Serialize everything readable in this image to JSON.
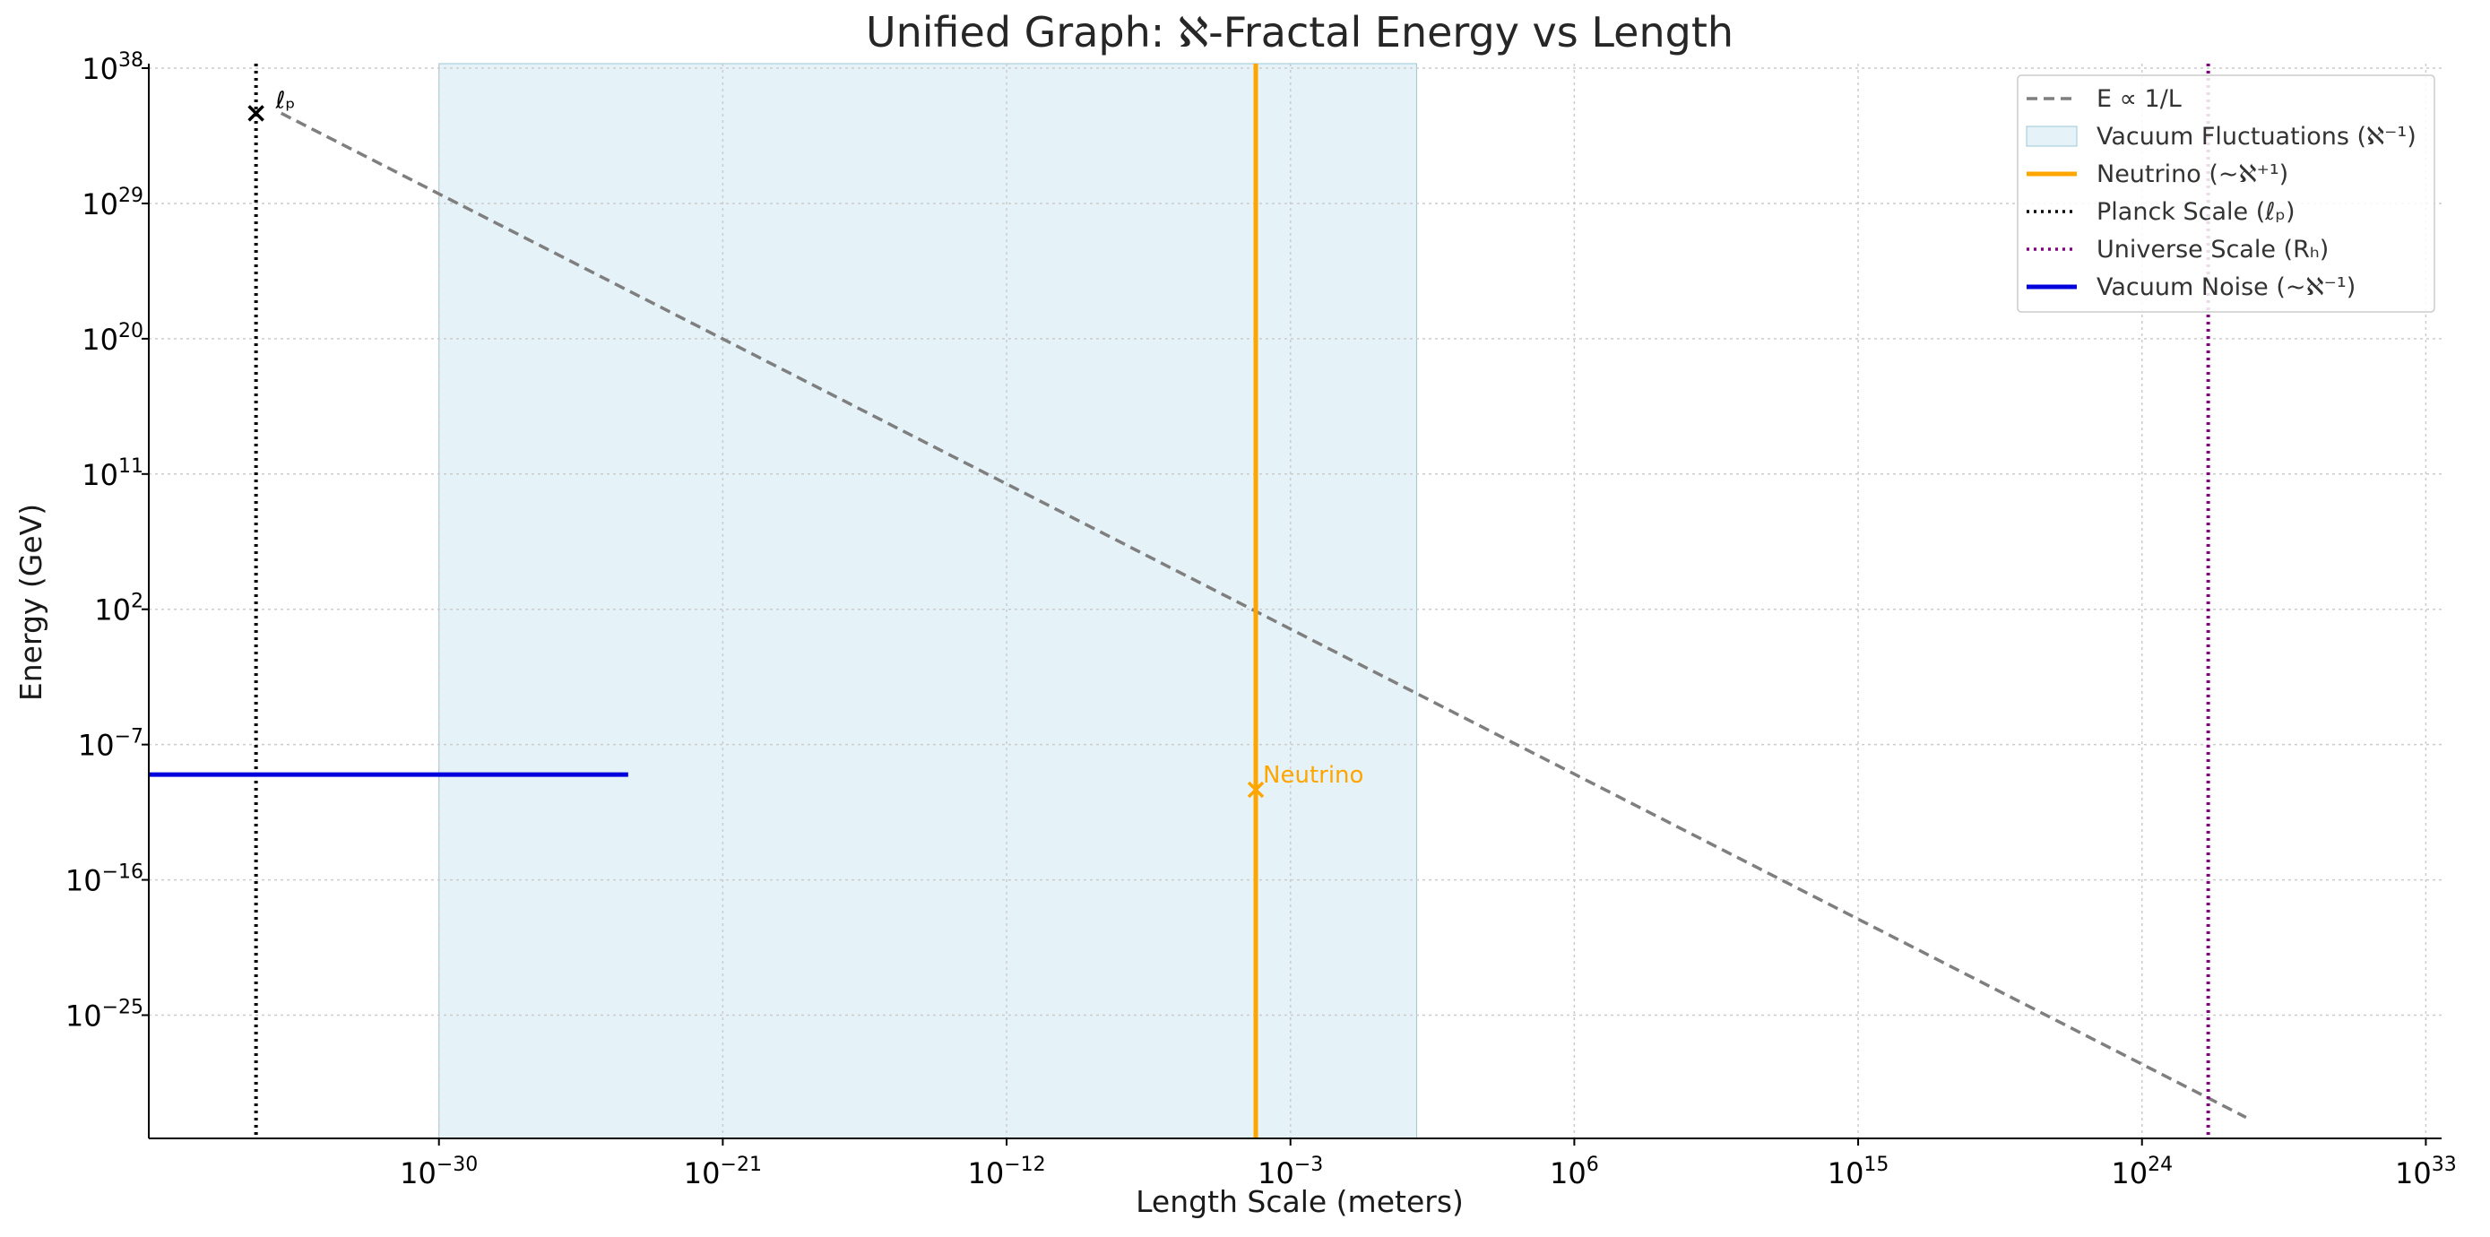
{
  "chart_data": {
    "type": "line",
    "title": "Unified Graph: ℵ-Fractal Energy vs Length",
    "xlabel": "Length Scale (meters)",
    "ylabel": "Energy (GeV)",
    "x_scale": "log",
    "y_scale": "log",
    "x_log_range": [
      -39.2,
      33.5
    ],
    "y_log_range": [
      -33.2,
      38.3
    ],
    "x_ticks": [
      {
        "exp": -30,
        "label": "−30"
      },
      {
        "exp": -21,
        "label": "−21"
      },
      {
        "exp": -12,
        "label": "−12"
      },
      {
        "exp": -3,
        "label": "−3"
      },
      {
        "exp": 6,
        "label": "6"
      },
      {
        "exp": 15,
        "label": "15"
      },
      {
        "exp": 24,
        "label": "24"
      },
      {
        "exp": 33,
        "label": "33"
      }
    ],
    "y_ticks": [
      {
        "exp": 38,
        "label": "38"
      },
      {
        "exp": 29,
        "label": "29"
      },
      {
        "exp": 20,
        "label": "20"
      },
      {
        "exp": 11,
        "label": "11"
      },
      {
        "exp": 2,
        "label": "2"
      },
      {
        "exp": -7,
        "label": "−7"
      },
      {
        "exp": -16,
        "label": "−16"
      },
      {
        "exp": -25,
        "label": "−25"
      }
    ],
    "tick_base": "10",
    "grid": true,
    "legend_position": "top-right",
    "series": [
      {
        "name": "E ∝ 1/L",
        "kind": "line",
        "style": "dashed",
        "color": "#7f7f7f",
        "x_log": [
          -35,
          27.3
        ],
        "y_log": [
          35,
          -31.8
        ]
      },
      {
        "name": "Vacuum Fluctuations (ℵ⁻¹)",
        "kind": "vspan",
        "color": "#add8e6",
        "x_log": [
          -30,
          1
        ]
      },
      {
        "name": "Neutrino (~ℵ⁺¹)",
        "kind": "vline",
        "style": "solid",
        "color": "#ffa500",
        "x_log": -4.1
      },
      {
        "name": "Planck Scale (ℓₚ)",
        "kind": "vline",
        "style": "dotted",
        "color": "#000000",
        "x_log": -35.8
      },
      {
        "name": "Universe Scale (Rₕ)",
        "kind": "vline",
        "style": "dotted",
        "color": "#800080",
        "x_log": 26.1
      },
      {
        "name": "Vacuum Noise (~ℵ⁻¹)",
        "kind": "hline",
        "style": "solid",
        "color": "#0000dd",
        "y_log": -9,
        "x_log": [
          -39.2,
          -24
        ]
      }
    ],
    "markers": [
      {
        "label": "ℓₚ",
        "x_log": -35.8,
        "y_log": 35,
        "color": "#000000",
        "symbol": "x"
      },
      {
        "label": "Neutrino",
        "x_log": -4.1,
        "y_log": -10,
        "color": "#ffa500",
        "symbol": "x"
      }
    ]
  }
}
